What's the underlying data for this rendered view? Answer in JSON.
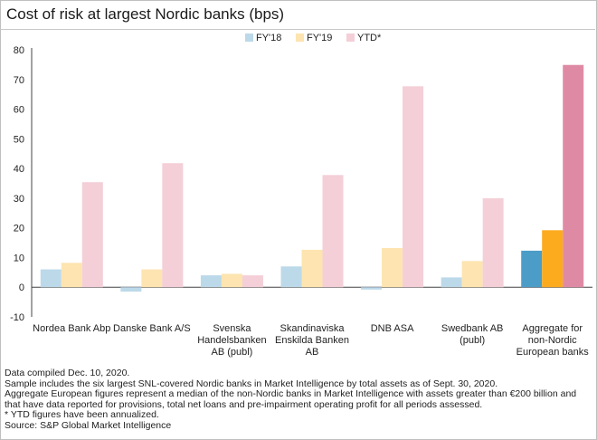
{
  "chart_data": {
    "type": "bar",
    "title": "Cost of risk at largest Nordic banks (bps)",
    "categories": [
      "Nordea Bank Abp",
      "Danske Bank A/S",
      "Svenska Handelsbanken AB (publ)",
      "Skandinaviska Enskilda Banken AB",
      "DNB ASA",
      "Swedbank AB (publ)",
      "Aggregate for non-Nordic European banks"
    ],
    "category_lines": [
      [
        "Nordea Bank Abp"
      ],
      [
        "Danske Bank A/S"
      ],
      [
        "Svenska",
        "Handelsbanken",
        "AB (publ)"
      ],
      [
        "Skandinaviska",
        "Enskilda Banken",
        "AB"
      ],
      [
        "DNB ASA"
      ],
      [
        "Swedbank AB",
        "(publ)"
      ],
      [
        "Aggregate for",
        "non-Nordic",
        "European banks"
      ]
    ],
    "series": [
      {
        "name": "FY'18",
        "values": [
          6,
          -1.5,
          4,
          7,
          -0.8,
          3.3,
          12.3
        ]
      },
      {
        "name": "FY'19",
        "values": [
          8.2,
          6,
          4.5,
          12.6,
          13.2,
          8.8,
          19.2
        ]
      },
      {
        "name": "YTD*",
        "values": [
          35.4,
          41.8,
          4,
          37.8,
          67.7,
          30,
          74.9
        ]
      }
    ],
    "colors": {
      "light": [
        "#bcd9e9",
        "#fde4b0",
        "#f4cfd8"
      ],
      "highlight": [
        "#4c9cc8",
        "#fcab1f",
        "#df8aa5"
      ],
      "highlight_category_index": 6
    },
    "ylim": [
      -10,
      80
    ],
    "yticks": [
      -10,
      0,
      10,
      20,
      30,
      40,
      50,
      60,
      70,
      80
    ],
    "xlabel": "",
    "ylabel": "",
    "grid": false,
    "legend": {
      "placement": "top-center",
      "entries": [
        "FY'18",
        "FY'19",
        "YTD*"
      ]
    }
  },
  "notes": [
    "Data compiled Dec. 10, 2020.",
    "Sample includes the six largest SNL-covered Nordic banks in Market Intelligence by total assets as of Sept. 30, 2020.",
    "Aggregate European figures represent a median of the non-Nordic banks in Market Intelligence with assets greater than €200 billion and",
    "that have data reported for provisions, total net loans and pre-impairment operating profit for all periods assessed.",
    "* YTD figures have been annualized.",
    "Source: S&P Global Market Intelligence"
  ]
}
